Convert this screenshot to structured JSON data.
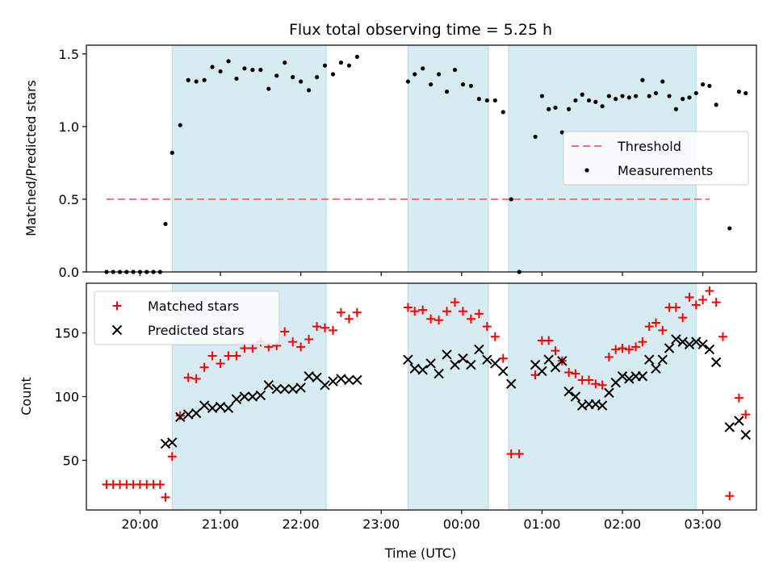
{
  "chart_data": [
    {
      "type": "scatter",
      "title": "Flux total observing time = 5.25 h",
      "xlabel": "",
      "ylabel": "Matched/Predicted stars",
      "x_range_hours": [
        19.333,
        27.667
      ],
      "ylim": [
        0,
        1.56
      ],
      "yticks": [
        0,
        0.5,
        1.0,
        1.5
      ],
      "ytick_labels": [
        "0.0",
        "0.5",
        "1.0",
        "1.5"
      ],
      "legend_position": "center-right",
      "legend": [
        "Threshold",
        "Measurements"
      ],
      "threshold": {
        "name": "Threshold",
        "value": 0.5,
        "x_start": "19:35",
        "x_end": "27:05",
        "color": "#f07070"
      },
      "shaded_intervals": [
        [
          "20:24",
          "22:19"
        ],
        [
          "23:20",
          "00:20"
        ],
        [
          "00:35",
          "02:55"
        ]
      ],
      "series": [
        {
          "name": "Measurements",
          "color": "#000000",
          "points": [
            [
              "19:35",
              0.0
            ],
            [
              "19:40",
              0.0
            ],
            [
              "19:45",
              0.0
            ],
            [
              "19:50",
              0.0
            ],
            [
              "19:55",
              0.0
            ],
            [
              "20:00",
              0.0
            ],
            [
              "20:05",
              0.0
            ],
            [
              "20:10",
              0.0
            ],
            [
              "20:15",
              0.0
            ],
            [
              "20:19",
              0.33
            ],
            [
              "20:24",
              0.82
            ],
            [
              "20:30",
              1.01
            ],
            [
              "20:36",
              1.32
            ],
            [
              "20:42",
              1.31
            ],
            [
              "20:48",
              1.32
            ],
            [
              "20:54",
              1.41
            ],
            [
              "21:00",
              1.38
            ],
            [
              "21:06",
              1.45
            ],
            [
              "21:12",
              1.33
            ],
            [
              "21:18",
              1.4
            ],
            [
              "21:24",
              1.39
            ],
            [
              "21:30",
              1.39
            ],
            [
              "21:36",
              1.26
            ],
            [
              "21:42",
              1.35
            ],
            [
              "21:48",
              1.44
            ],
            [
              "21:54",
              1.34
            ],
            [
              "22:00",
              1.31
            ],
            [
              "22:06",
              1.25
            ],
            [
              "22:12",
              1.34
            ],
            [
              "22:18",
              1.42
            ],
            [
              "22:24",
              1.36
            ],
            [
              "22:30",
              1.44
            ],
            [
              "22:36",
              1.42
            ],
            [
              "22:42",
              1.48
            ],
            [
              "23:20",
              1.31
            ],
            [
              "23:25",
              1.36
            ],
            [
              "23:31",
              1.4
            ],
            [
              "23:37",
              1.29
            ],
            [
              "23:43",
              1.36
            ],
            [
              "23:49",
              1.24
            ],
            [
              "23:55",
              1.39
            ],
            [
              "00:01",
              1.29
            ],
            [
              "00:07",
              1.28
            ],
            [
              "00:13",
              1.19
            ],
            [
              "00:19",
              1.18
            ],
            [
              "00:25",
              1.18
            ],
            [
              "00:31",
              1.1
            ],
            [
              "00:37",
              0.5
            ],
            [
              "00:43",
              0.0
            ],
            [
              "00:55",
              0.93
            ],
            [
              "01:00",
              1.21
            ],
            [
              "01:05",
              1.12
            ],
            [
              "01:10",
              1.13
            ],
            [
              "01:15",
              0.96
            ],
            [
              "01:20",
              1.12
            ],
            [
              "01:25",
              1.18
            ],
            [
              "01:30",
              1.22
            ],
            [
              "01:35",
              1.18
            ],
            [
              "01:40",
              1.17
            ],
            [
              "01:45",
              1.14
            ],
            [
              "01:50",
              1.21
            ],
            [
              "01:55",
              1.19
            ],
            [
              "02:00",
              1.21
            ],
            [
              "02:05",
              1.2
            ],
            [
              "02:10",
              1.21
            ],
            [
              "02:15",
              1.32
            ],
            [
              "02:20",
              1.21
            ],
            [
              "02:25",
              1.23
            ],
            [
              "02:30",
              1.31
            ],
            [
              "02:35",
              1.21
            ],
            [
              "02:40",
              1.12
            ],
            [
              "02:45",
              1.19
            ],
            [
              "02:50",
              1.2
            ],
            [
              "02:55",
              1.23
            ],
            [
              "03:00",
              1.29
            ],
            [
              "03:05",
              1.28
            ],
            [
              "03:10",
              1.15
            ],
            [
              "03:20",
              0.3
            ],
            [
              "03:27",
              1.24
            ],
            [
              "03:32",
              1.23
            ]
          ]
        }
      ]
    },
    {
      "type": "scatter",
      "title": "",
      "xlabel": "Time (UTC)",
      "ylabel": "Count",
      "x_range_hours": [
        19.333,
        27.667
      ],
      "ylim": [
        11,
        189
      ],
      "yticks": [
        50,
        100,
        150
      ],
      "ytick_labels": [
        "50",
        "100",
        "150"
      ],
      "xticks": [
        20,
        21,
        22,
        23,
        24,
        25,
        26,
        27
      ],
      "xtick_labels": [
        "20:00",
        "21:00",
        "22:00",
        "23:00",
        "00:00",
        "01:00",
        "02:00",
        "03:00"
      ],
      "legend_position": "upper-left",
      "legend": [
        "Matched stars",
        "Predicted stars"
      ],
      "shaded_intervals": [
        [
          "20:24",
          "22:19"
        ],
        [
          "23:20",
          "00:20"
        ],
        [
          "00:35",
          "02:55"
        ]
      ],
      "series": [
        {
          "name": "Matched stars",
          "marker": "plus",
          "color": "#ff0000",
          "points": [
            [
              "19:35",
              31
            ],
            [
              "19:40",
              31
            ],
            [
              "19:45",
              31
            ],
            [
              "19:50",
              31
            ],
            [
              "19:55",
              31
            ],
            [
              "20:00",
              31
            ],
            [
              "20:05",
              31
            ],
            [
              "20:10",
              31
            ],
            [
              "20:15",
              31
            ],
            [
              "20:19",
              21
            ],
            [
              "20:24",
              53
            ],
            [
              "20:30",
              85
            ],
            [
              "20:36",
              115
            ],
            [
              "20:42",
              114
            ],
            [
              "20:48",
              123
            ],
            [
              "20:54",
              132
            ],
            [
              "21:00",
              126
            ],
            [
              "21:06",
              132
            ],
            [
              "21:12",
              132
            ],
            [
              "21:18",
              138
            ],
            [
              "21:24",
              138
            ],
            [
              "21:30",
              143
            ],
            [
              "21:36",
              139
            ],
            [
              "21:42",
              140
            ],
            [
              "21:48",
              151
            ],
            [
              "21:54",
              143
            ],
            [
              "22:00",
              139
            ],
            [
              "22:06",
              145
            ],
            [
              "22:12",
              155
            ],
            [
              "22:18",
              154
            ],
            [
              "22:24",
              152
            ],
            [
              "22:30",
              166
            ],
            [
              "22:36",
              161
            ],
            [
              "22:42",
              166
            ],
            [
              "23:20",
              170
            ],
            [
              "23:25",
              167
            ],
            [
              "23:31",
              168
            ],
            [
              "23:37",
              161
            ],
            [
              "23:43",
              160
            ],
            [
              "23:49",
              167
            ],
            [
              "23:55",
              174
            ],
            [
              "00:01",
              167
            ],
            [
              "00:07",
              161
            ],
            [
              "00:13",
              165
            ],
            [
              "00:19",
              155
            ],
            [
              "00:25",
              147
            ],
            [
              "00:31",
              130
            ],
            [
              "00:37",
              55
            ],
            [
              "00:43",
              55
            ],
            [
              "00:55",
              117
            ],
            [
              "01:00",
              144
            ],
            [
              "01:05",
              144
            ],
            [
              "01:10",
              136
            ],
            [
              "01:15",
              128
            ],
            [
              "01:20",
              119
            ],
            [
              "01:25",
              118
            ],
            [
              "01:30",
              113
            ],
            [
              "01:35",
              113
            ],
            [
              "01:40",
              110
            ],
            [
              "01:45",
              109
            ],
            [
              "01:50",
              131
            ],
            [
              "01:55",
              137
            ],
            [
              "02:00",
              138
            ],
            [
              "02:05",
              137
            ],
            [
              "02:10",
              139
            ],
            [
              "02:15",
              143
            ],
            [
              "02:20",
              155
            ],
            [
              "02:25",
              158
            ],
            [
              "02:30",
              152
            ],
            [
              "02:35",
              170
            ],
            [
              "02:40",
              170
            ],
            [
              "02:45",
              162
            ],
            [
              "02:50",
              178
            ],
            [
              "02:55",
              172
            ],
            [
              "03:00",
              176
            ],
            [
              "03:05",
              183
            ],
            [
              "03:10",
              174
            ],
            [
              "03:15",
              147
            ],
            [
              "03:20",
              22
            ],
            [
              "03:27",
              99
            ],
            [
              "03:32",
              86
            ]
          ]
        },
        {
          "name": "Predicted stars",
          "marker": "x",
          "color": "#000000",
          "points": [
            [
              "20:19",
              63
            ],
            [
              "20:24",
              64
            ],
            [
              "20:30",
              84
            ],
            [
              "20:36",
              86
            ],
            [
              "20:42",
              87
            ],
            [
              "20:48",
              93
            ],
            [
              "20:54",
              91
            ],
            [
              "21:00",
              92
            ],
            [
              "21:06",
              91
            ],
            [
              "21:12",
              98
            ],
            [
              "21:18",
              100
            ],
            [
              "21:24",
              100
            ],
            [
              "21:30",
              101
            ],
            [
              "21:36",
              109
            ],
            [
              "21:42",
              106
            ],
            [
              "21:48",
              106
            ],
            [
              "21:54",
              106
            ],
            [
              "22:00",
              107
            ],
            [
              "22:06",
              116
            ],
            [
              "22:12",
              115
            ],
            [
              "22:18",
              109
            ],
            [
              "22:24",
              112
            ],
            [
              "22:30",
              114
            ],
            [
              "22:36",
              113
            ],
            [
              "22:42",
              113
            ],
            [
              "23:20",
              129
            ],
            [
              "23:25",
              122
            ],
            [
              "23:31",
              121
            ],
            [
              "23:37",
              126
            ],
            [
              "23:43",
              118
            ],
            [
              "23:49",
              133
            ],
            [
              "23:55",
              125
            ],
            [
              "00:01",
              130
            ],
            [
              "00:07",
              125
            ],
            [
              "00:13",
              137
            ],
            [
              "00:19",
              129
            ],
            [
              "00:25",
              126
            ],
            [
              "00:31",
              120
            ],
            [
              "00:37",
              110
            ],
            [
              "00:55",
              125
            ],
            [
              "01:00",
              120
            ],
            [
              "01:05",
              129
            ],
            [
              "01:10",
              123
            ],
            [
              "01:15",
              128
            ],
            [
              "01:20",
              104
            ],
            [
              "01:25",
              100
            ],
            [
              "01:30",
              93
            ],
            [
              "01:35",
              94
            ],
            [
              "01:40",
              94
            ],
            [
              "01:45",
              93
            ],
            [
              "01:50",
              103
            ],
            [
              "01:55",
              111
            ],
            [
              "02:00",
              116
            ],
            [
              "02:05",
              114
            ],
            [
              "02:10",
              116
            ],
            [
              "02:15",
              116
            ],
            [
              "02:20",
              129
            ],
            [
              "02:25",
              122
            ],
            [
              "02:30",
              129
            ],
            [
              "02:35",
              138
            ],
            [
              "02:40",
              145
            ],
            [
              "02:45",
              143
            ],
            [
              "02:50",
              141
            ],
            [
              "02:55",
              143
            ],
            [
              "03:00",
              141
            ],
            [
              "03:05",
              137
            ],
            [
              "03:10",
              127
            ],
            [
              "03:20",
              76
            ],
            [
              "03:27",
              81
            ],
            [
              "03:32",
              70
            ]
          ]
        }
      ]
    }
  ]
}
